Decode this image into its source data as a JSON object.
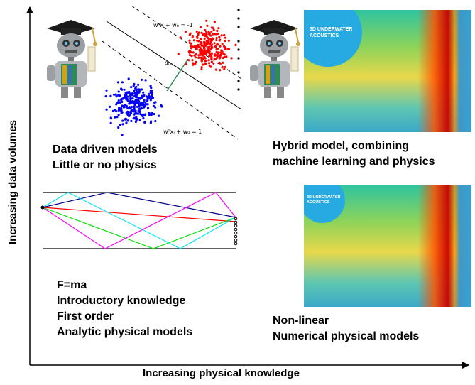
{
  "axes": {
    "x_label": "Increasing physical knowledge",
    "y_label": "Increasing data volumes"
  },
  "svm_figure": {
    "upper_margin_eq": "wᵀx + w₀ = -1",
    "lower_margin_eq": "wᵀxᵢ + w₀ = 1",
    "margin_label": "dₘ",
    "class_colors": [
      "#ff0000",
      "#0000ff"
    ]
  },
  "quadrants": {
    "top_left": {
      "line1": "Data driven models",
      "line2": "Little or no physics"
    },
    "top_right": {
      "line1": "Hybrid model, combining",
      "line2": "machine learning and physics"
    },
    "bottom_left": {
      "line1": "F=ma",
      "line2": "Introductory knowledge",
      "line3": "First order",
      "line4": "Analytic physical models"
    },
    "bottom_right": {
      "line1": "Non-linear",
      "line2": "Numerical physical models"
    }
  },
  "maps": {
    "top_badge": {
      "line1": "3D UNDERWATER",
      "line2": "ACOUSTICS"
    },
    "bottom_badge": {
      "line1": "3D UNDERWATER",
      "line2": "ACOUSTICS"
    }
  },
  "ray_colors": [
    "#00008b",
    "#ff0000",
    "#00dd00",
    "#00e5ee",
    "#ff00ff"
  ]
}
